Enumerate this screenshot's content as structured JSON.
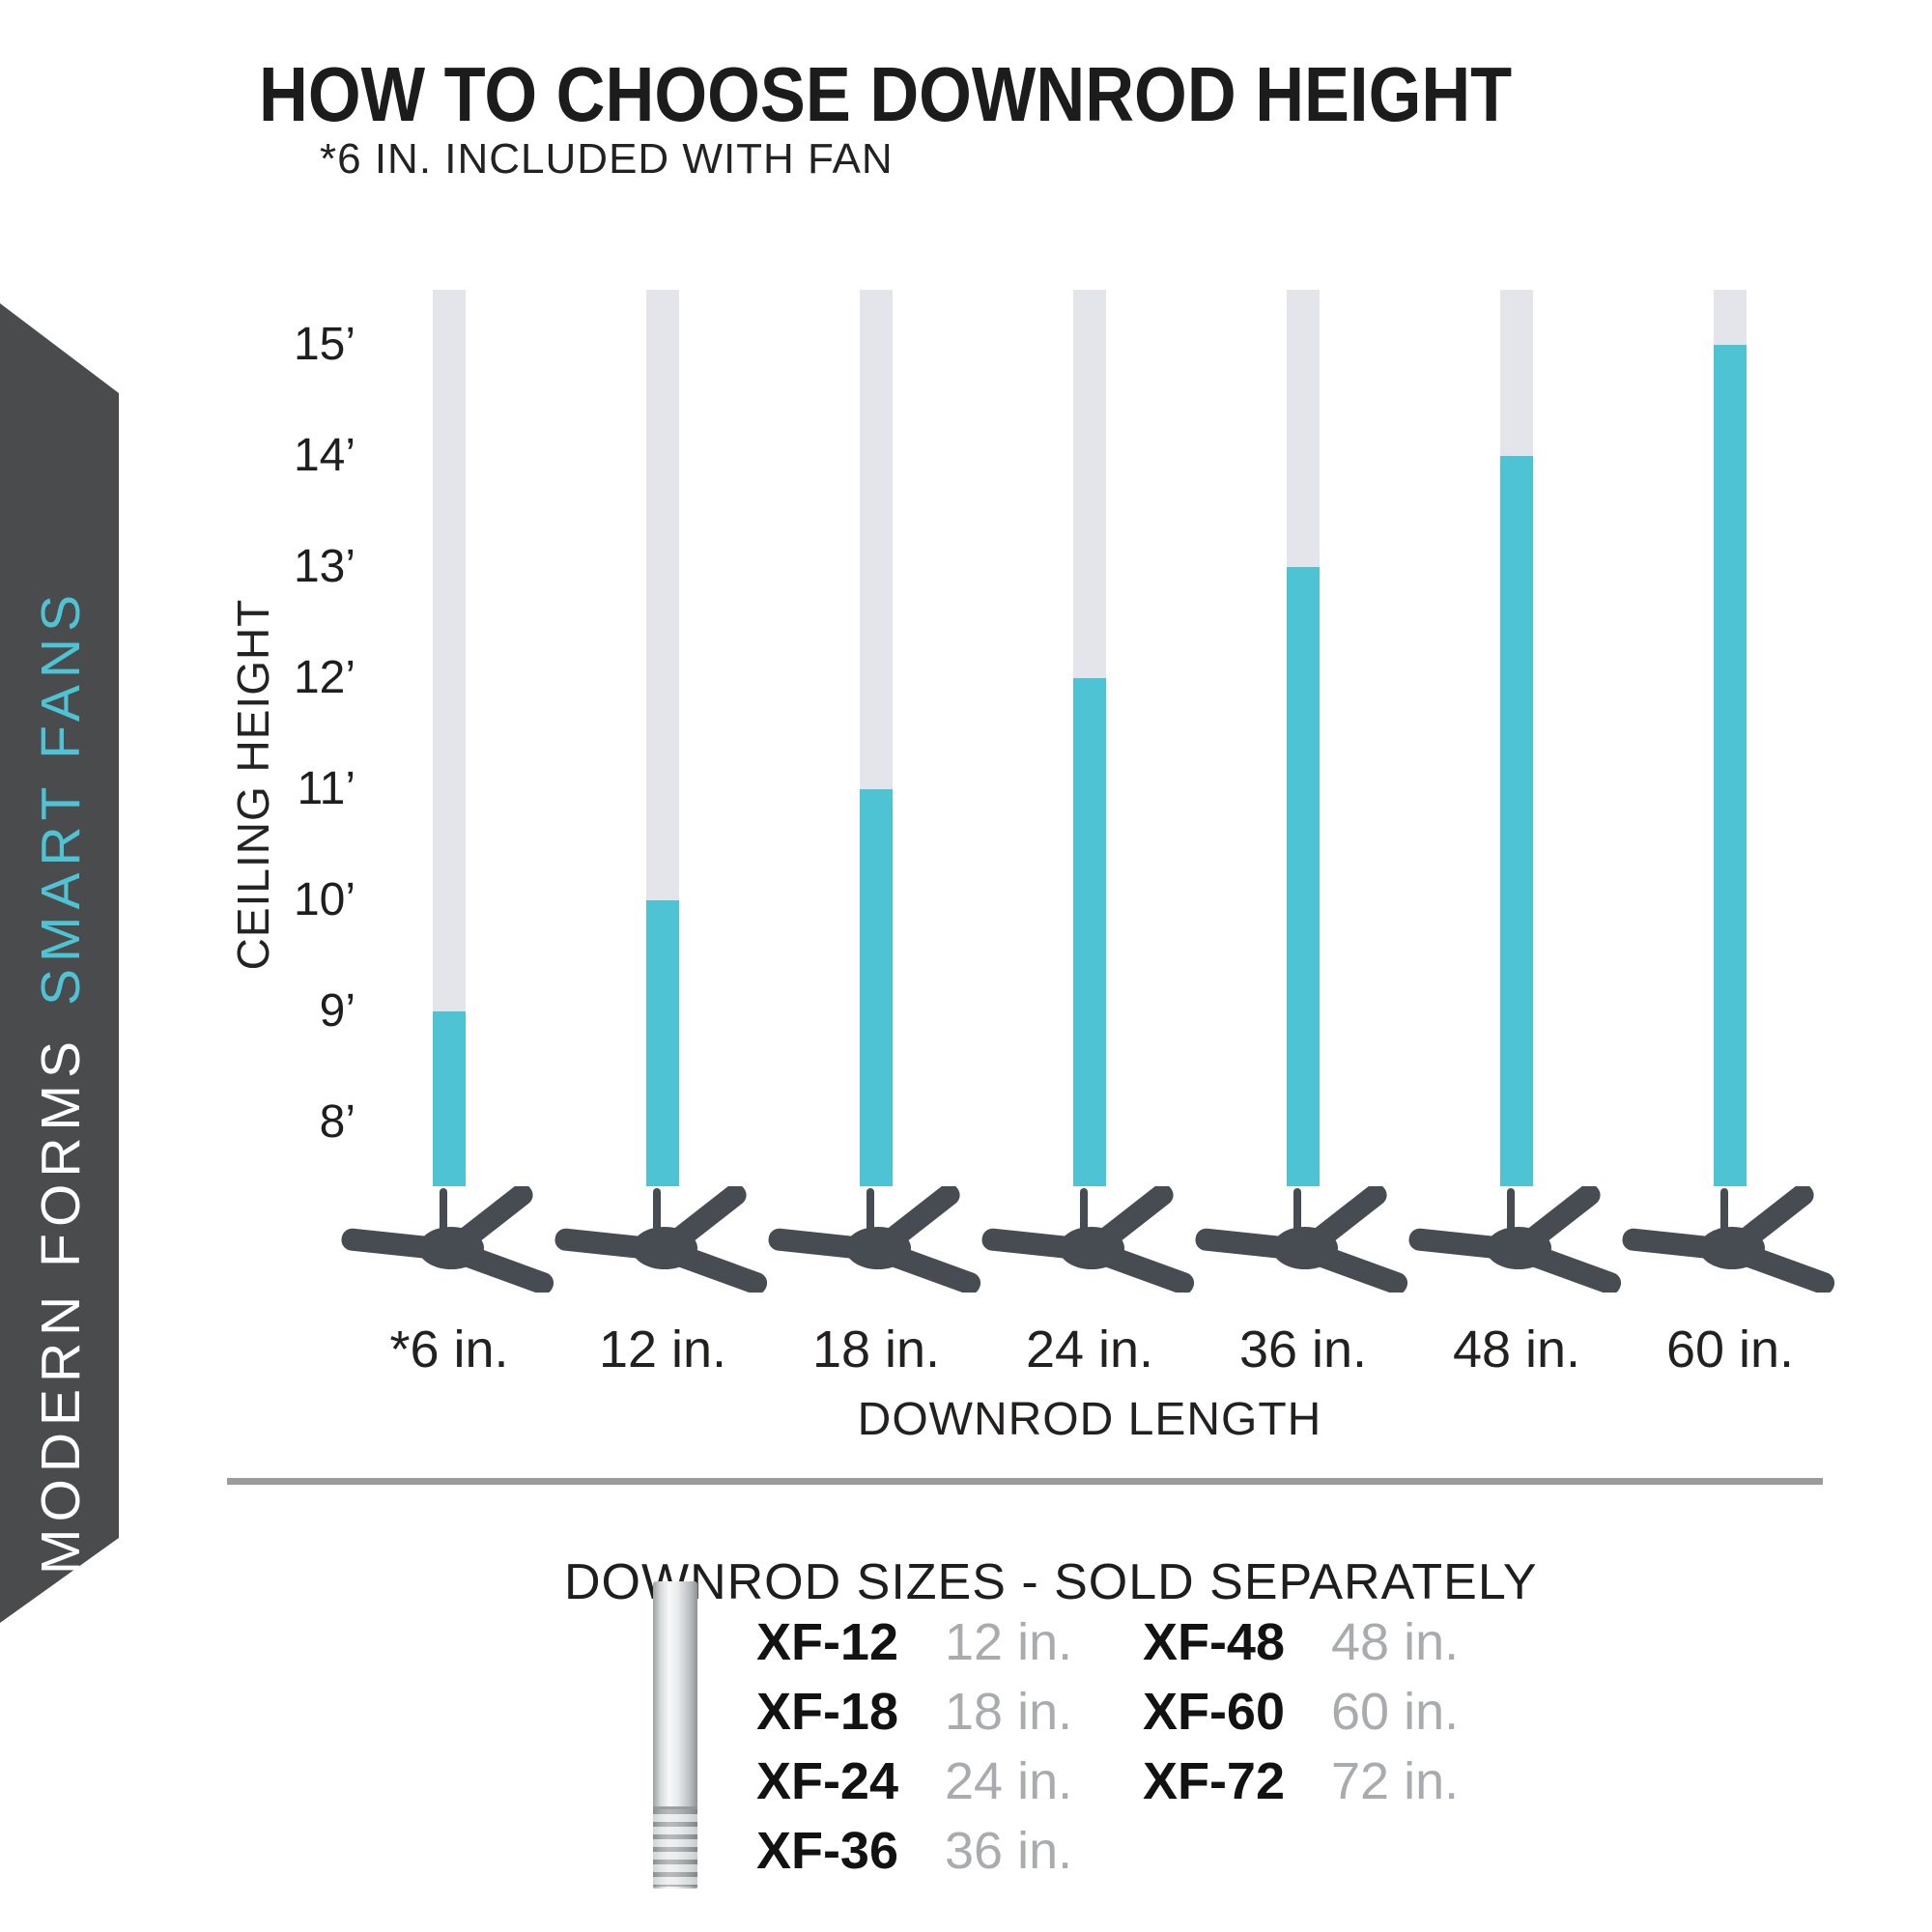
{
  "header": {
    "title": "HOW TO CHOOSE DOWNROD HEIGHT",
    "note": "*6 IN. INCLUDED WITH FAN"
  },
  "banner": {
    "brand": "MODERN FORMS",
    "brand_sub": "SMART FANS",
    "bg_color": "#4a4b4d",
    "accent_color": "#4ec3d4"
  },
  "chart_data": {
    "type": "bar",
    "title": "HOW TO CHOOSE DOWNROD HEIGHT",
    "note": "*6 IN. INCLUDED WITH FAN",
    "xlabel": "DOWNROD LENGTH",
    "ylabel": "CEILING HEIGHT",
    "categories": [
      "*6 in.",
      "12 in.",
      "18 in.",
      "24 in.",
      "36 in.",
      "48 in.",
      "60 in."
    ],
    "values_ft": [
      9,
      10,
      11,
      12,
      13,
      14,
      15
    ],
    "yticks": [
      "15’",
      "14’",
      "13’",
      "12’",
      "11’",
      "10’",
      "9’",
      "8’"
    ],
    "ytick_values": [
      15,
      14,
      13,
      12,
      11,
      10,
      9,
      8
    ],
    "ylim": [
      7.4,
      15.6
    ],
    "grid": false,
    "legend": false,
    "bar_color": "#4ec3d4",
    "track_color": "#e4e5ea",
    "fan_color": "#474c52"
  },
  "downrod_table": {
    "title": "DOWNROD SIZES - SOLD SEPARATELY",
    "columns": [
      {
        "rows": [
          {
            "model": "XF-12",
            "size": "12 in."
          },
          {
            "model": "XF-18",
            "size": "18 in."
          },
          {
            "model": "XF-24",
            "size": "24 in."
          },
          {
            "model": "XF-36",
            "size": "36 in."
          }
        ]
      },
      {
        "rows": [
          {
            "model": "XF-48",
            "size": "48 in."
          },
          {
            "model": "XF-60",
            "size": "60 in."
          },
          {
            "model": "XF-72",
            "size": "72 in."
          }
        ]
      }
    ]
  }
}
